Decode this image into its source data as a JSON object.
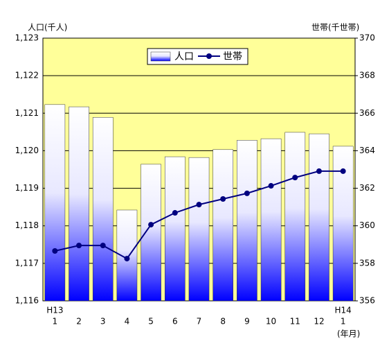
{
  "chart_data": {
    "type": "bar-line",
    "y_label": "人口(千人)",
    "y2_label": "世帯(千世帯)",
    "x_label": "(年月)",
    "categories": [
      "1",
      "2",
      "3",
      "4",
      "5",
      "6",
      "7",
      "8",
      "9",
      "10",
      "11",
      "12",
      "1"
    ],
    "x_year_labels": [
      {
        "index": 0,
        "label": "H13"
      },
      {
        "index": 12,
        "label": "H14"
      }
    ],
    "series": [
      {
        "name": "人口",
        "type": "bar",
        "color": "#0000ff",
        "values": [
          1121.23,
          1121.17,
          1120.89,
          1118.42,
          1119.64,
          1119.84,
          1119.82,
          1120.03,
          1120.28,
          1120.32,
          1120.49,
          1120.45,
          1120.12
        ]
      },
      {
        "name": "世帯",
        "type": "line",
        "axis": "y2",
        "color": "#000080",
        "values": [
          358.66,
          358.95,
          358.95,
          358.25,
          360.06,
          360.69,
          361.13,
          361.43,
          361.73,
          362.13,
          362.57,
          362.91,
          362.91
        ]
      }
    ],
    "ylim": [
      1116,
      1123
    ],
    "yticks": [
      {
        "value": 1116,
        "label": "1,116"
      },
      {
        "value": 1117,
        "label": "1,117"
      },
      {
        "value": 1118,
        "label": "1,118"
      },
      {
        "value": 1119,
        "label": "1,119"
      },
      {
        "value": 1120,
        "label": "1,120"
      },
      {
        "value": 1121,
        "label": "1,121"
      },
      {
        "value": 1122,
        "label": "1,122"
      },
      {
        "value": 1123,
        "label": "1,123"
      }
    ],
    "y2lim": [
      356,
      370
    ],
    "y2ticks": [
      356,
      358,
      360,
      362,
      364,
      366,
      368,
      370
    ],
    "grid": true,
    "background": "#ffff99",
    "legend": "top"
  }
}
